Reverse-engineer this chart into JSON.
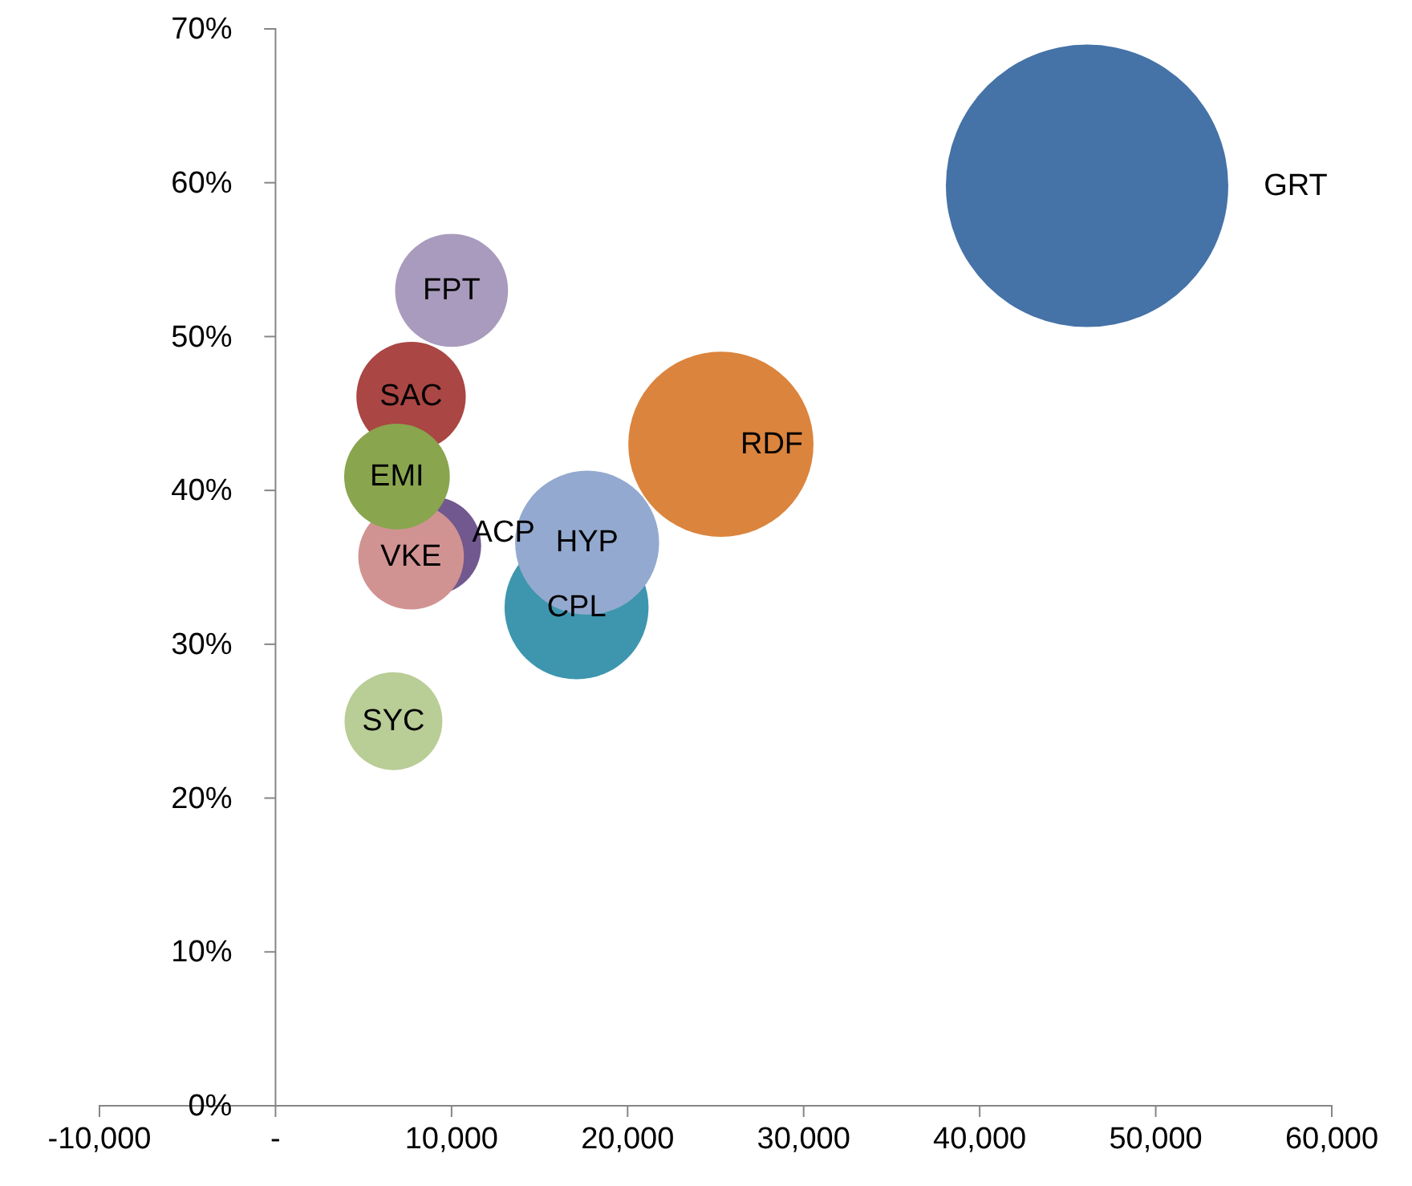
{
  "chart_data": {
    "type": "bubble",
    "xlim": [
      -10000,
      60000
    ],
    "ylim": [
      0,
      70
    ],
    "xticks": [
      {
        "value": -10000,
        "label": "-10,000"
      },
      {
        "value": 0,
        "label": "-"
      },
      {
        "value": 10000,
        "label": "10,000"
      },
      {
        "value": 20000,
        "label": "20,000"
      },
      {
        "value": 30000,
        "label": "30,000"
      },
      {
        "value": 40000,
        "label": "40,000"
      },
      {
        "value": 50000,
        "label": "50,000"
      },
      {
        "value": 60000,
        "label": "60,000"
      }
    ],
    "yticks": [
      {
        "value": 0,
        "label": "0%"
      },
      {
        "value": 10,
        "label": "10%"
      },
      {
        "value": 20,
        "label": "20%"
      },
      {
        "value": 30,
        "label": "30%"
      },
      {
        "value": 40,
        "label": "40%"
      },
      {
        "value": 50,
        "label": "50%"
      },
      {
        "value": 60,
        "label": "60%"
      },
      {
        "value": 70,
        "label": "70%"
      }
    ],
    "grid": false,
    "series": [
      {
        "name": "GRT",
        "color": "#4572a7",
        "x": [
          46100
        ],
        "values": [
          59.8
        ],
        "sizes": [
          1
        ]
      },
      {
        "name": "RDF",
        "color": "#db843d",
        "x": [
          25300
        ],
        "values": [
          43.0
        ],
        "sizes": [
          0.43
        ]
      },
      {
        "name": "CPL",
        "color": "#3d96ae",
        "x": [
          17100
        ],
        "values": [
          32.4
        ],
        "sizes": [
          0.26
        ]
      },
      {
        "name": "HYP",
        "color": "#93a9cf",
        "x": [
          17700
        ],
        "values": [
          36.6
        ],
        "sizes": [
          0.26
        ]
      },
      {
        "name": "FPT",
        "color": "#a99bbd",
        "x": [
          10000
        ],
        "values": [
          53.0
        ],
        "sizes": [
          0.16
        ]
      },
      {
        "name": "SAC",
        "color": "#aa4643",
        "x": [
          7700
        ],
        "values": [
          46.1
        ],
        "sizes": [
          0.15
        ]
      },
      {
        "name": "ACP",
        "color": "#71588f",
        "x": [
          8900
        ],
        "values": [
          36.4
        ],
        "sizes": [
          0.12
        ]
      },
      {
        "name": "VKE",
        "color": "#d19392",
        "x": [
          7700
        ],
        "values": [
          35.7
        ],
        "sizes": [
          0.14
        ]
      },
      {
        "name": "EMI",
        "color": "#89a54e",
        "x": [
          6900
        ],
        "values": [
          40.9
        ],
        "sizes": [
          0.14
        ]
      },
      {
        "name": "SYC",
        "color": "#b9cd96",
        "x": [
          6700
        ],
        "values": [
          25.0
        ],
        "sizes": [
          0.12
        ]
      }
    ]
  }
}
